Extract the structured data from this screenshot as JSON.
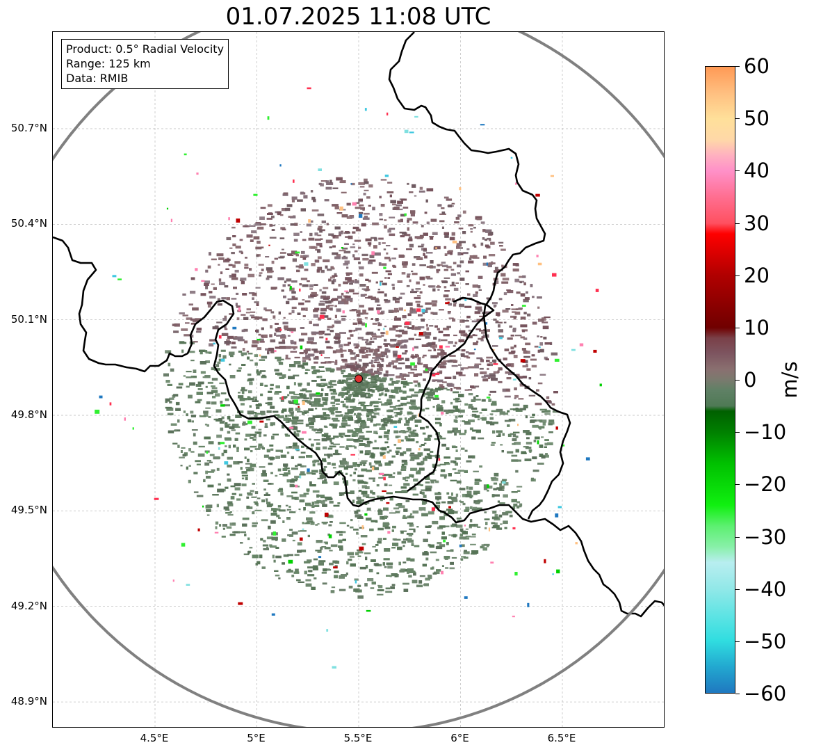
{
  "title": "01.07.2025 11:08 UTC",
  "info_box": {
    "product": "Product: 0.5° Radial Velocity",
    "range": "Range: 125 km",
    "data": "Data: RMIB"
  },
  "map": {
    "lon_ticks": [
      "4.5°E",
      "5°E",
      "5.5°E",
      "6°E",
      "6.5°E"
    ],
    "lat_ticks": [
      "50.7°N",
      "50.4°N",
      "50.1°N",
      "49.8°N",
      "49.5°N",
      "49.2°N",
      "48.9°N"
    ],
    "lon_range": [
      4.0,
      7.0
    ],
    "lat_range": [
      48.8,
      51.0
    ],
    "radar_site": {
      "lon": 5.5,
      "lat": 49.915
    },
    "range_ring_color": "#808080",
    "border_color": "#000000",
    "receding_color": "#7e5f66",
    "approaching_color": "#5e7a5e"
  },
  "colorbar": {
    "unit": "m/s",
    "tick_labels": [
      "60",
      "50",
      "40",
      "30",
      "20",
      "10",
      "0",
      "−10",
      "−20",
      "−30",
      "−40",
      "−50",
      "−60"
    ],
    "vmin": -60,
    "vmax": 60,
    "color_stops": [
      {
        "v": -60,
        "c": "#1f78c0"
      },
      {
        "v": -55,
        "c": "#22a8d0"
      },
      {
        "v": -50,
        "c": "#30dde0"
      },
      {
        "v": -45,
        "c": "#60e4e4"
      },
      {
        "v": -40,
        "c": "#92e8e8"
      },
      {
        "v": -35,
        "c": "#b8eef0"
      },
      {
        "v": -32,
        "c": "#88f0a8"
      },
      {
        "v": -28,
        "c": "#5cf070"
      },
      {
        "v": -24,
        "c": "#10f010"
      },
      {
        "v": -16,
        "c": "#00c000"
      },
      {
        "v": -10,
        "c": "#008000"
      },
      {
        "v": -6,
        "c": "#006000"
      },
      {
        "v": -5,
        "c": "#4f7a55"
      },
      {
        "v": -2,
        "c": "#5f8065"
      },
      {
        "v": 0,
        "c": "#7a7a6e"
      },
      {
        "v": 2,
        "c": "#8a7070"
      },
      {
        "v": 5,
        "c": "#7d5560"
      },
      {
        "v": 8,
        "c": "#7a4048"
      },
      {
        "v": 10,
        "c": "#700000"
      },
      {
        "v": 20,
        "c": "#b00000"
      },
      {
        "v": 28,
        "c": "#ff0000"
      },
      {
        "v": 30,
        "c": "#ff5060"
      },
      {
        "v": 35,
        "c": "#ff6e90"
      },
      {
        "v": 40,
        "c": "#ff90c8"
      },
      {
        "v": 43,
        "c": "#ffb0c0"
      },
      {
        "v": 46,
        "c": "#ffd8a8"
      },
      {
        "v": 50,
        "c": "#ffe09a"
      },
      {
        "v": 55,
        "c": "#ffbf80"
      },
      {
        "v": 60,
        "c": "#ff9955"
      }
    ]
  }
}
